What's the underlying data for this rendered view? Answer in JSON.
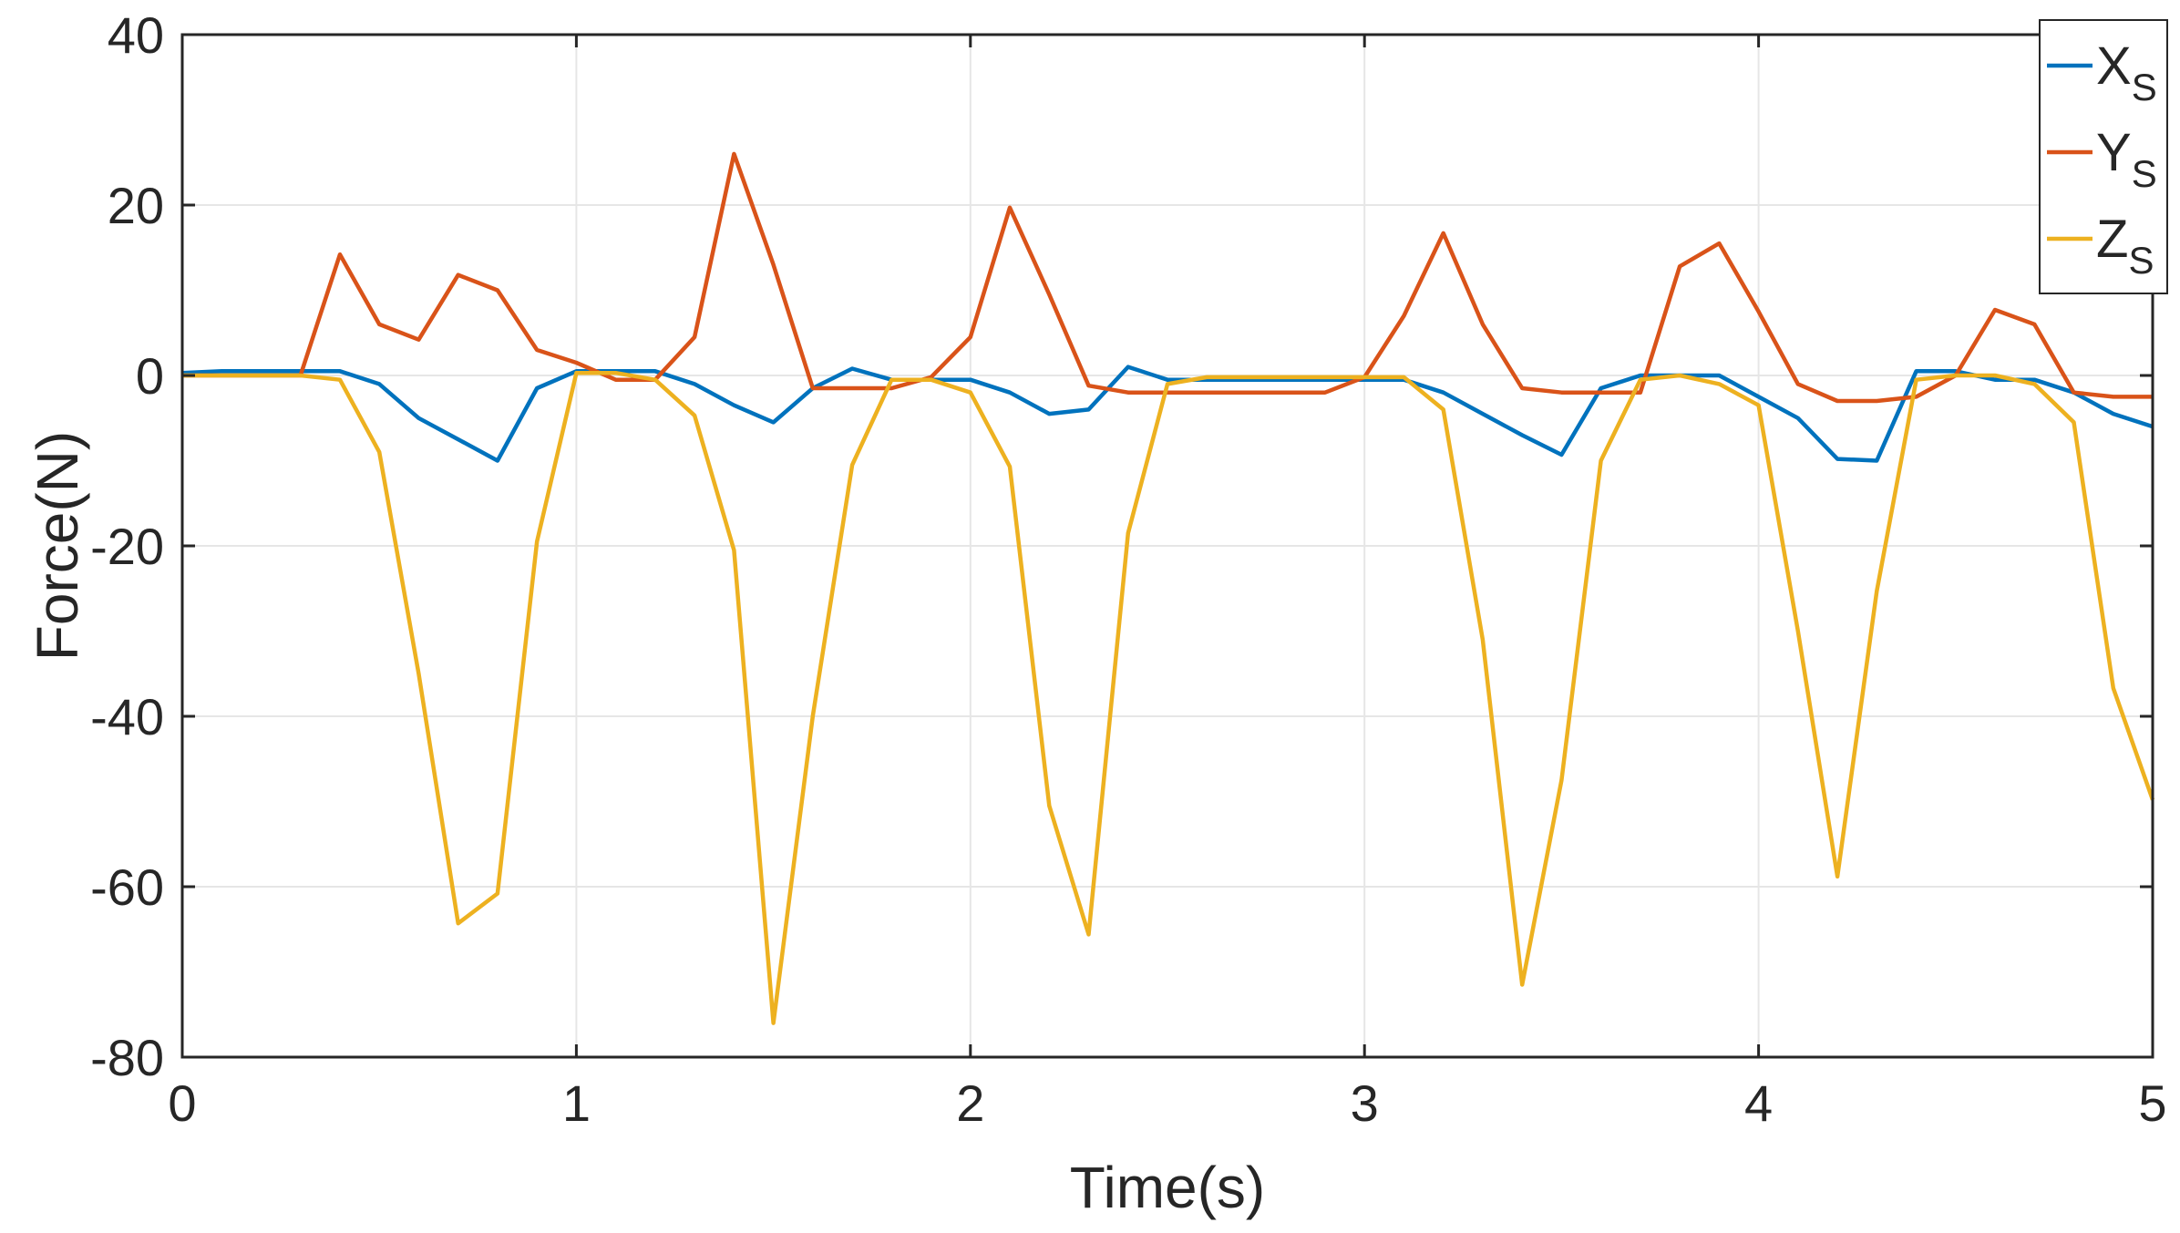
{
  "chart_data": {
    "type": "line",
    "xlabel": "Time(s)",
    "ylabel": "Force(N)",
    "xlim": [
      0,
      5
    ],
    "ylim": [
      -80,
      40
    ],
    "xticks": [
      0,
      1,
      2,
      3,
      4,
      5
    ],
    "yticks": [
      40,
      20,
      0,
      -20,
      -40,
      -60,
      -80
    ],
    "grid": true,
    "legend_position": "top-right",
    "x": [
      0,
      0.1,
      0.2,
      0.3,
      0.4,
      0.5,
      0.6,
      0.7,
      0.8,
      0.9,
      1.0,
      1.1,
      1.2,
      1.3,
      1.4,
      1.5,
      1.6,
      1.7,
      1.8,
      1.9,
      2.0,
      2.1,
      2.2,
      2.3,
      2.4,
      2.5,
      2.6,
      2.7,
      2.8,
      2.9,
      3.0,
      3.1,
      3.2,
      3.3,
      3.4,
      3.5,
      3.6,
      3.7,
      3.8,
      3.9,
      4.0,
      4.1,
      4.2,
      4.3,
      4.4,
      4.5,
      4.6,
      4.7,
      4.8,
      4.9,
      5.0
    ],
    "series": [
      {
        "name": "X",
        "subscript": "S",
        "color": "#0072BD",
        "values": [
          0.3,
          0.5,
          0.5,
          0.5,
          0.5,
          -1,
          -5,
          -7.5,
          -10,
          -1.5,
          0.5,
          0.5,
          0.5,
          -1,
          -3.5,
          -5.5,
          -1.5,
          0.8,
          -0.5,
          -0.5,
          -0.5,
          -2,
          -4.5,
          -4,
          1,
          -0.5,
          -0.5,
          -0.5,
          -0.5,
          -0.5,
          -0.5,
          -0.5,
          -2,
          -4.5,
          -7,
          -9.3,
          -1.5,
          0,
          0,
          0,
          -2.5,
          -5,
          -9.8,
          -10,
          0.5,
          0.5,
          -0.5,
          -0.5,
          -2,
          -4.5,
          -6
        ]
      },
      {
        "name": "Y",
        "subscript": "S",
        "color": "#D95319",
        "values": [
          0,
          0,
          0,
          0,
          14.2,
          6,
          4.2,
          11.8,
          10,
          3,
          1.5,
          -0.5,
          -0.5,
          4.5,
          26,
          13,
          -1.5,
          -1.5,
          -1.5,
          -0.2,
          4.5,
          19.7,
          9.5,
          -1.2,
          -2,
          -2,
          -2,
          -2,
          -2,
          -2,
          -0.2,
          7,
          16.7,
          6,
          -1.5,
          -2,
          -2,
          -2,
          12.8,
          15.5,
          7.5,
          -1,
          -3,
          -3,
          -2.5,
          0,
          7.7,
          6,
          -2,
          -2.5,
          -2.5
        ]
      },
      {
        "name": "Z",
        "subscript": "S",
        "color": "#EDB120",
        "values": [
          0,
          0,
          0,
          0,
          -0.5,
          -9,
          -35,
          -64.3,
          -60.8,
          -19.5,
          0.3,
          0.3,
          -0.5,
          -4.7,
          -20.5,
          -76,
          -40,
          -10.5,
          -0.5,
          -0.5,
          -2,
          -10.7,
          -50.5,
          -65.6,
          -18.5,
          -1,
          -0.2,
          -0.2,
          -0.2,
          -0.2,
          -0.2,
          -0.2,
          -4,
          -31,
          -71.5,
          -47.5,
          -10,
          -0.5,
          0,
          -1,
          -3.5,
          -30,
          -58.8,
          -25.3,
          -0.5,
          0,
          0,
          -1,
          -5.5,
          -36.7,
          -49.8
        ]
      }
    ]
  }
}
